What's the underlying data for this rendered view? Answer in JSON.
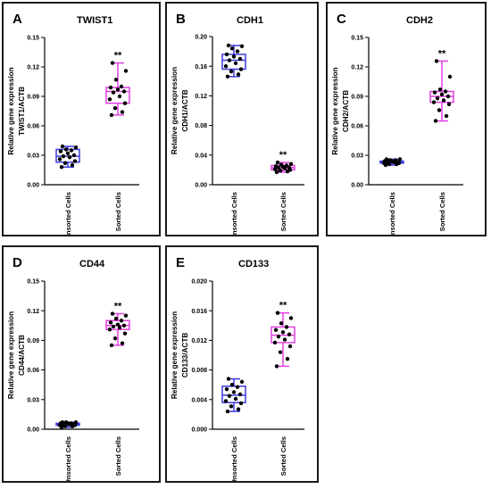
{
  "colors": {
    "unsorted": "#3b3bdc",
    "sorted": "#e040e0",
    "axis": "#000000",
    "dot": "#000000"
  },
  "chart_data": [
    {
      "letter": "A",
      "title": "TWIST1",
      "type": "box",
      "ylabel": [
        "Relative gene expression",
        "TWIST1/ACTB"
      ],
      "ylim": [
        0,
        0.15
      ],
      "yticks": [
        "0.00",
        "0.03",
        "0.06",
        "0.09",
        "0.12",
        "0.15"
      ],
      "categories": [
        "Unsorted Cells",
        "Sorted Cells"
      ],
      "significance": "**",
      "groups": [
        {
          "name": "Unsorted Cells",
          "min": 0.018,
          "q1": 0.023,
          "median": 0.029,
          "q3": 0.036,
          "max": 0.039,
          "points": [
            0.018,
            0.02,
            0.022,
            0.024,
            0.026,
            0.028,
            0.029,
            0.03,
            0.032,
            0.034,
            0.035,
            0.036,
            0.038,
            0.039
          ]
        },
        {
          "name": "Sorted Cells",
          "min": 0.071,
          "q1": 0.083,
          "median": 0.095,
          "q3": 0.099,
          "max": 0.124,
          "points": [
            0.071,
            0.074,
            0.078,
            0.083,
            0.087,
            0.09,
            0.094,
            0.095,
            0.097,
            0.099,
            0.1,
            0.107,
            0.116,
            0.124
          ]
        }
      ]
    },
    {
      "letter": "B",
      "title": "CDH1",
      "type": "box",
      "ylabel": [
        "Relative gene expression",
        "CDH1/ACTB"
      ],
      "ylim": [
        0,
        0.2
      ],
      "yticks": [
        "0.00",
        "0.04",
        "0.08",
        "0.12",
        "0.16",
        "0.20"
      ],
      "categories": [
        "Unsorted Cells",
        "Sorted Cells"
      ],
      "significance": "**",
      "groups": [
        {
          "name": "Unsorted Cells",
          "min": 0.146,
          "q1": 0.156,
          "median": 0.168,
          "q3": 0.176,
          "max": 0.188,
          "points": [
            0.146,
            0.149,
            0.153,
            0.156,
            0.16,
            0.164,
            0.168,
            0.17,
            0.173,
            0.176,
            0.18,
            0.184,
            0.187,
            0.188
          ]
        },
        {
          "name": "Sorted Cells",
          "min": 0.017,
          "q1": 0.02,
          "median": 0.023,
          "q3": 0.026,
          "max": 0.03,
          "points": [
            0.017,
            0.018,
            0.019,
            0.02,
            0.021,
            0.022,
            0.023,
            0.023,
            0.024,
            0.025,
            0.026,
            0.027,
            0.028,
            0.03
          ]
        }
      ]
    },
    {
      "letter": "C",
      "title": "CDH2",
      "type": "box",
      "ylabel": [
        "Relative gene expression",
        "CDH2/ACTB"
      ],
      "ylim": [
        0,
        0.15
      ],
      "yticks": [
        "0.00",
        "0.03",
        "0.06",
        "0.09",
        "0.12",
        "0.15"
      ],
      "categories": [
        "Unsorted Cells",
        "Sorted Cells"
      ],
      "significance": "**",
      "groups": [
        {
          "name": "Unsorted Cells",
          "min": 0.02,
          "q1": 0.022,
          "median": 0.023,
          "q3": 0.024,
          "max": 0.026,
          "points": [
            0.02,
            0.021,
            0.021,
            0.022,
            0.022,
            0.023,
            0.023,
            0.023,
            0.024,
            0.024,
            0.025,
            0.025,
            0.026,
            0.026
          ]
        },
        {
          "name": "Sorted Cells",
          "min": 0.065,
          "q1": 0.084,
          "median": 0.09,
          "q3": 0.095,
          "max": 0.126,
          "points": [
            0.065,
            0.07,
            0.076,
            0.082,
            0.084,
            0.086,
            0.088,
            0.09,
            0.092,
            0.094,
            0.095,
            0.097,
            0.11,
            0.126
          ]
        }
      ]
    },
    {
      "letter": "D",
      "title": "CD44",
      "type": "box",
      "ylabel": [
        "Relative gene expression",
        "CD44/ACTB"
      ],
      "ylim": [
        0,
        0.15
      ],
      "yticks": [
        "0.00",
        "0.03",
        "0.06",
        "0.09",
        "0.12",
        "0.15"
      ],
      "categories": [
        "Unsorted Cells",
        "Sorted Cells"
      ],
      "significance": "**",
      "groups": [
        {
          "name": "Unsorted Cells",
          "min": 0.002,
          "q1": 0.004,
          "median": 0.005,
          "q3": 0.006,
          "max": 0.007,
          "points": [
            0.002,
            0.003,
            0.003,
            0.004,
            0.004,
            0.005,
            0.005,
            0.005,
            0.006,
            0.006,
            0.006,
            0.007,
            0.007,
            0.007
          ]
        },
        {
          "name": "Sorted Cells",
          "min": 0.085,
          "q1": 0.101,
          "median": 0.105,
          "q3": 0.11,
          "max": 0.117,
          "points": [
            0.085,
            0.087,
            0.092,
            0.097,
            0.101,
            0.103,
            0.104,
            0.105,
            0.106,
            0.108,
            0.11,
            0.112,
            0.115,
            0.117
          ]
        }
      ]
    },
    {
      "letter": "E",
      "title": "CD133",
      "type": "box",
      "ylabel": [
        "Relative gene expression",
        "CD133/ACTB"
      ],
      "ylim": [
        0,
        0.02
      ],
      "yticks": [
        "0.000",
        "0.004",
        "0.008",
        "0.012",
        "0.016",
        "0.020"
      ],
      "categories": [
        "Unsorted Cells",
        "Sorted Cells"
      ],
      "significance": "**",
      "groups": [
        {
          "name": "Unsorted Cells",
          "min": 0.0024,
          "q1": 0.0036,
          "median": 0.0046,
          "q3": 0.0058,
          "max": 0.0068,
          "points": [
            0.0024,
            0.0027,
            0.0031,
            0.0035,
            0.0038,
            0.0041,
            0.0045,
            0.0047,
            0.005,
            0.0054,
            0.0057,
            0.006,
            0.0064,
            0.0068
          ]
        },
        {
          "name": "Sorted Cells",
          "min": 0.0085,
          "q1": 0.0117,
          "median": 0.0127,
          "q3": 0.0138,
          "max": 0.0157,
          "points": [
            0.0085,
            0.0095,
            0.0104,
            0.0112,
            0.0117,
            0.0121,
            0.0125,
            0.0128,
            0.0131,
            0.0134,
            0.0138,
            0.0143,
            0.015,
            0.0157
          ]
        }
      ]
    }
  ]
}
